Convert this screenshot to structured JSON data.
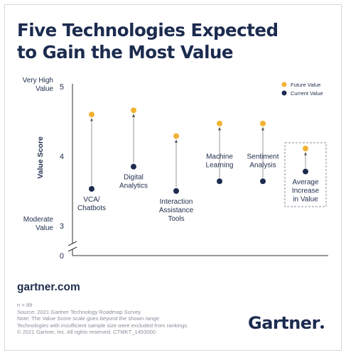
{
  "title_line1": "Five Technologies Expected",
  "title_line2": "to Gain the Most Value",
  "site": "gartner.com",
  "footnotes": [
    "n = 89",
    "Source: 2021 Gartner Technology Roadmap Survey",
    "Note: The Value Score scale goes beyond the shown range.",
    "Technologies with insufficient sample size were excluded from rankings.",
    "© 2021 Gartner, Inc. All rights reserved. CTMKT_1453000"
  ],
  "logo": "Gartner",
  "colors": {
    "future": "#f2b233",
    "current": "#1c2b4f",
    "axis": "#333333",
    "stem": "#9a9a9a"
  },
  "chart_data": {
    "type": "scatter",
    "ylabel": "Value Score",
    "ylim": [
      3,
      5
    ],
    "yticks": [
      {
        "value": 5,
        "label": "5"
      },
      {
        "value": 4,
        "label": "4"
      },
      {
        "value": 3,
        "label": "3"
      },
      {
        "value": 0,
        "label": "0"
      }
    ],
    "ytick_captions": [
      {
        "value": 5,
        "lines": [
          "Very High",
          "Value"
        ]
      },
      {
        "value": 3,
        "lines": [
          "Moderate",
          "Value"
        ]
      }
    ],
    "axis_break": true,
    "legend": {
      "position": "top-right",
      "items": [
        "Future Value",
        "Current Value"
      ]
    },
    "series": [
      {
        "name": "Future Value",
        "values": [
          4.6,
          4.66,
          4.29,
          4.47,
          4.47,
          4.11
        ]
      },
      {
        "name": "Current Value",
        "values": [
          3.53,
          3.85,
          3.5,
          3.64,
          3.64,
          3.78
        ]
      }
    ],
    "categories": [
      {
        "lines": [
          "VCA/",
          "Chatbots"
        ],
        "label_side": "below"
      },
      {
        "lines": [
          "Digital",
          "Analytics"
        ],
        "label_side": "below"
      },
      {
        "lines": [
          "Interaction",
          "Assistance",
          "Tools"
        ],
        "label_side": "below"
      },
      {
        "lines": [
          "Machine",
          "Learning"
        ],
        "label_side": "above"
      },
      {
        "lines": [
          "Sentiment",
          "Analysis"
        ],
        "label_side": "above"
      },
      {
        "lines": [
          "Average",
          "Increase",
          "in Value"
        ],
        "label_side": "below",
        "highlight": true
      }
    ]
  }
}
